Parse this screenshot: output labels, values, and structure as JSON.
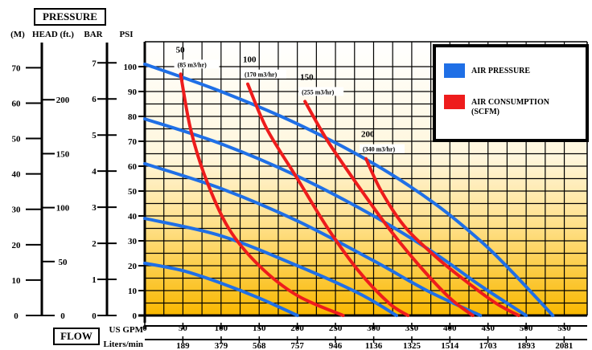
{
  "header": {
    "pressure_label": "PRESSURE",
    "flow_label": "FLOW"
  },
  "chart_data": {
    "type": "line",
    "pressure_axes": {
      "m_label": "(M)",
      "head_label": "HEAD (ft.)",
      "bar_label": "BAR",
      "psi_label": "PSI",
      "m_ticks": [
        "0",
        "10",
        "20",
        "30",
        "40",
        "50",
        "60",
        "70"
      ],
      "ft_ticks": [
        "0",
        "50",
        "100",
        "150",
        "200"
      ],
      "bar_ticks": [
        "0",
        "1",
        "2",
        "3",
        "4",
        "5",
        "6",
        "7"
      ],
      "psi_ticks": [
        "0",
        "10",
        "20",
        "30",
        "40",
        "50",
        "60",
        "70",
        "80",
        "90",
        "100"
      ]
    },
    "flow_axes": {
      "gpm_label": "US GPM",
      "lpm_label": "Liters/min",
      "gpm_ticks": [
        "0",
        "50",
        "100",
        "150",
        "200",
        "250",
        "300",
        "350",
        "400",
        "450",
        "500",
        "550"
      ],
      "lpm_ticks": [
        "189",
        "379",
        "568",
        "757",
        "946",
        "1136",
        "1325",
        "1514",
        "1703",
        "1893",
        "2081"
      ]
    },
    "xlim": [
      0,
      580
    ],
    "ylim": [
      0,
      110
    ],
    "grid": true,
    "legend": {
      "position": "top-right",
      "items": [
        {
          "label": "AIR PRESSURE",
          "color": "#1f6fe6"
        },
        {
          "label": "AIR CONSUMPTION (SCFM)",
          "color": "#ee1c1c"
        }
      ]
    },
    "series": [
      {
        "kind": "air-pressure",
        "color": "#1f6fe6",
        "x": [
          0,
          100,
          200,
          300,
          380,
          440,
          480,
          535
        ],
        "y": [
          101,
          90,
          77,
          61,
          45,
          30,
          18,
          0
        ]
      },
      {
        "kind": "air-pressure",
        "color": "#1f6fe6",
        "x": [
          0,
          100,
          200,
          300,
          380,
          440,
          500
        ],
        "y": [
          79,
          69,
          56,
          40,
          25,
          12,
          0
        ]
      },
      {
        "kind": "air-pressure",
        "color": "#1f6fe6",
        "x": [
          0,
          100,
          200,
          300,
          370,
          440
        ],
        "y": [
          61,
          51,
          38,
          22,
          10,
          0
        ]
      },
      {
        "kind": "air-pressure",
        "color": "#1f6fe6",
        "x": [
          0,
          100,
          200,
          280,
          330
        ],
        "y": [
          39,
          32,
          20,
          9,
          0
        ]
      },
      {
        "kind": "air-pressure",
        "color": "#1f6fe6",
        "x": [
          0,
          50,
          100,
          150,
          200
        ],
        "y": [
          21,
          18,
          13,
          7,
          0
        ]
      },
      {
        "kind": "air-consumption",
        "color": "#ee1c1c",
        "x": [
          47,
          60,
          80,
          110,
          150,
          200,
          260
        ],
        "y": [
          97,
          75,
          55,
          35,
          20,
          8,
          0
        ]
      },
      {
        "kind": "air-consumption",
        "color": "#ee1c1c",
        "x": [
          135,
          160,
          200,
          240,
          280,
          320,
          345
        ],
        "y": [
          93,
          75,
          55,
          35,
          18,
          5,
          0
        ]
      },
      {
        "kind": "air-consumption",
        "color": "#ee1c1c",
        "x": [
          210,
          240,
          280,
          320,
          360,
          400,
          430
        ],
        "y": [
          86,
          70,
          52,
          35,
          20,
          7,
          0
        ]
      },
      {
        "kind": "air-consumption",
        "color": "#ee1c1c",
        "x": [
          290,
          310,
          340,
          380,
          420,
          460,
          490
        ],
        "y": [
          63,
          50,
          36,
          24,
          14,
          5,
          0
        ]
      }
    ],
    "annotations": [
      {
        "scfm": "50",
        "m3": "(85 m3/hr)"
      },
      {
        "scfm": "100",
        "m3": "(170 m3/hr)"
      },
      {
        "scfm": "150",
        "m3": "(255 m3/hr)"
      },
      {
        "scfm": "200",
        "m3": "(340 m3/hr)"
      }
    ]
  }
}
